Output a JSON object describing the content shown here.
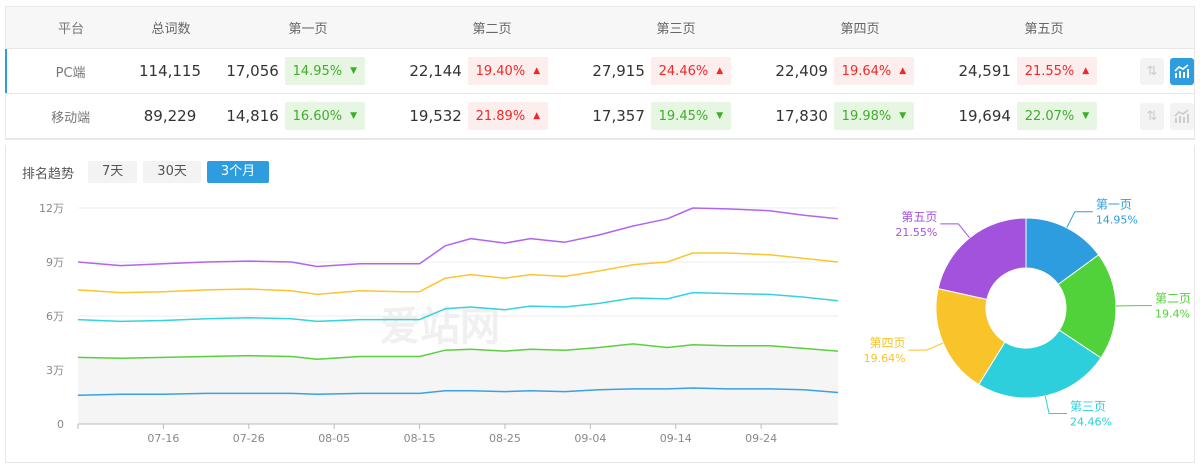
{
  "table": {
    "headers": [
      "平台",
      "总词数",
      "第一页",
      "第二页",
      "第三页",
      "第四页",
      "第五页"
    ],
    "rows": [
      {
        "platform": "PC端",
        "total": "114,115",
        "pages": [
          {
            "count": "17,056",
            "pct": "14.95%",
            "dir": "down"
          },
          {
            "count": "22,144",
            "pct": "19.40%",
            "dir": "up"
          },
          {
            "count": "27,915",
            "pct": "24.46%",
            "dir": "up"
          },
          {
            "count": "22,409",
            "pct": "19.64%",
            "dir": "up"
          },
          {
            "count": "24,591",
            "pct": "21.55%",
            "dir": "up"
          }
        ],
        "chart_active": true
      },
      {
        "platform": "移动端",
        "total": "89,229",
        "pages": [
          {
            "count": "14,816",
            "pct": "16.60%",
            "dir": "down"
          },
          {
            "count": "19,532",
            "pct": "21.89%",
            "dir": "up"
          },
          {
            "count": "17,357",
            "pct": "19.45%",
            "dir": "down"
          },
          {
            "count": "17,830",
            "pct": "19.98%",
            "dir": "down"
          },
          {
            "count": "19,694",
            "pct": "22.07%",
            "dir": "down"
          }
        ],
        "chart_active": false
      }
    ]
  },
  "trend": {
    "label": "排名趋势",
    "ranges": [
      "7天",
      "30天",
      "3个月"
    ],
    "selected": "3个月"
  },
  "watermark": "爱站网",
  "colors": {
    "accent": "#2d9de0",
    "up": "#f02828",
    "down": "#3fae2a"
  },
  "chart_data": [
    {
      "type": "line",
      "stacked": true,
      "x": [
        "07-06",
        "07-11",
        "07-16",
        "07-21",
        "07-26",
        "07-31",
        "08-03",
        "08-08",
        "08-13",
        "08-15",
        "08-18",
        "08-21",
        "08-25",
        "08-28",
        "09-01",
        "09-05",
        "09-09",
        "09-13",
        "09-16",
        "09-20",
        "09-25",
        "09-29",
        "10-03"
      ],
      "xticks": [
        "07-16",
        "07-26",
        "08-05",
        "08-15",
        "08-25",
        "09-04",
        "09-14",
        "09-24"
      ],
      "yticks": [
        "0",
        "3万",
        "6万",
        "9万",
        "12万"
      ],
      "ylim": [
        0,
        120000
      ],
      "grid": true,
      "series": [
        {
          "color": "#3aa0e6",
          "values": [
            16000,
            16500,
            16500,
            17000,
            17000,
            17000,
            16500,
            17000,
            17000,
            17000,
            18500,
            18500,
            18000,
            18500,
            18000,
            19000,
            19500,
            19500,
            20000,
            19500,
            19500,
            19000,
            17500
          ]
        },
        {
          "color": "#5ccf3e",
          "values": [
            37000,
            36500,
            37000,
            37500,
            38000,
            37500,
            36000,
            37500,
            37500,
            37500,
            41000,
            41500,
            40500,
            41500,
            41000,
            42500,
            44500,
            42500,
            44000,
            43500,
            43500,
            42000,
            40500
          ]
        },
        {
          "color": "#36d2df",
          "values": [
            58000,
            57000,
            57500,
            58500,
            59000,
            58500,
            57000,
            58000,
            58000,
            58000,
            64000,
            65000,
            63500,
            65500,
            65000,
            67000,
            70000,
            69500,
            73000,
            72500,
            72000,
            70500,
            68500
          ]
        },
        {
          "color": "#fbc531",
          "values": [
            74500,
            73000,
            73500,
            74500,
            75000,
            74000,
            72000,
            74000,
            73500,
            73500,
            81000,
            83000,
            81000,
            83000,
            82000,
            85000,
            88500,
            90000,
            95000,
            95000,
            94000,
            92000,
            90000
          ]
        },
        {
          "color": "#b264ee",
          "values": [
            90000,
            88000,
            89000,
            90000,
            90500,
            90000,
            87500,
            89000,
            89000,
            89000,
            99000,
            103000,
            100500,
            103000,
            101000,
            105000,
            110000,
            114000,
            120000,
            119500,
            118500,
            116000,
            114000
          ]
        }
      ]
    },
    {
      "type": "pie",
      "donut": true,
      "categories": [
        "第一页",
        "第二页",
        "第三页",
        "第四页",
        "第五页"
      ],
      "values": [
        14.95,
        19.4,
        24.46,
        19.64,
        21.55
      ],
      "labels": [
        "14.95%",
        "19.4%",
        "24.46%",
        "19.64%",
        "21.55%"
      ],
      "colors": [
        "#2d9de0",
        "#52d23a",
        "#2dcfdc",
        "#f8c42a",
        "#a352dd"
      ]
    }
  ]
}
